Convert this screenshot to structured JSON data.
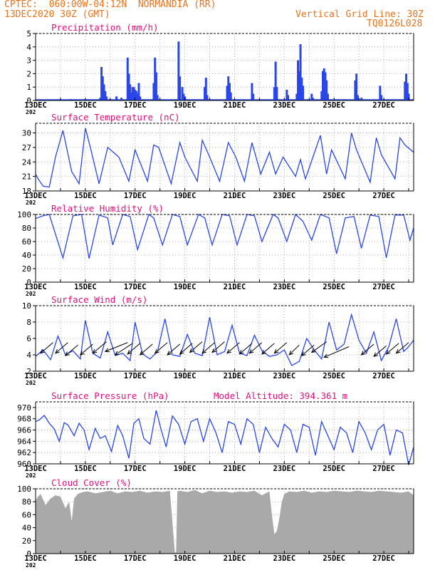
{
  "header": {
    "line1_left": "CPTEC:  060:00W-04:12N  NORMANDIA (RR)",
    "line2_left": "13DEC2020 30Z (GMT)",
    "line1_right": "Vertical Grid Line: 30Z",
    "line2_right": "TQ0126L028"
  },
  "colors": {
    "header": "#e8741c",
    "panel_title": "#e0107a",
    "series": "#2a46e8",
    "wind_arrow": "#000000",
    "cloud_fill": "#a9a9a9",
    "grid": "#9a9a9a"
  },
  "x_tick_labels": [
    "13DEC",
    "15DEC",
    "17DEC",
    "19DEC",
    "21DEC",
    "23DEC",
    "25DEC",
    "27DEC"
  ],
  "x_tick_days": [
    0,
    2,
    4,
    6,
    8,
    10,
    12,
    14
  ],
  "x_range_days": [
    0,
    15.2
  ],
  "x_cut_label": "202",
  "chart_data": [
    {
      "type": "bar",
      "title": "Precipitation (mm/h)",
      "ylim": [
        0,
        5
      ],
      "yticks": [
        0,
        1,
        2,
        3,
        4,
        5
      ],
      "grid": true,
      "bars": [
        {
          "x": 1.4,
          "v": 0.1
        },
        {
          "x": 2.6,
          "v": 0.2
        },
        {
          "x": 2.65,
          "v": 2.5
        },
        {
          "x": 2.7,
          "v": 1.8
        },
        {
          "x": 2.75,
          "v": 1.2
        },
        {
          "x": 2.8,
          "v": 0.7
        },
        {
          "x": 2.85,
          "v": 0.3
        },
        {
          "x": 3.25,
          "v": 0.3
        },
        {
          "x": 3.45,
          "v": 0.2
        },
        {
          "x": 3.7,
          "v": 3.2
        },
        {
          "x": 3.75,
          "v": 2.0
        },
        {
          "x": 3.8,
          "v": 1.2
        },
        {
          "x": 3.85,
          "v": 0.6
        },
        {
          "x": 3.9,
          "v": 1.0
        },
        {
          "x": 3.95,
          "v": 1.0
        },
        {
          "x": 4.0,
          "v": 0.8
        },
        {
          "x": 4.05,
          "v": 0.7
        },
        {
          "x": 4.1,
          "v": 0.5
        },
        {
          "x": 4.15,
          "v": 1.3
        },
        {
          "x": 4.2,
          "v": 0.3
        },
        {
          "x": 4.75,
          "v": 1.3
        },
        {
          "x": 4.8,
          "v": 3.2
        },
        {
          "x": 4.85,
          "v": 2.1
        },
        {
          "x": 4.9,
          "v": 0.4
        },
        {
          "x": 5.75,
          "v": 4.4
        },
        {
          "x": 5.8,
          "v": 1.8
        },
        {
          "x": 5.9,
          "v": 1.0
        },
        {
          "x": 5.95,
          "v": 0.5
        },
        {
          "x": 6.0,
          "v": 0.3
        },
        {
          "x": 6.8,
          "v": 1.0
        },
        {
          "x": 6.85,
          "v": 1.7
        },
        {
          "x": 6.9,
          "v": 0.4
        },
        {
          "x": 7.7,
          "v": 1.1
        },
        {
          "x": 7.75,
          "v": 1.8
        },
        {
          "x": 7.8,
          "v": 1.3
        },
        {
          "x": 7.85,
          "v": 0.6
        },
        {
          "x": 8.7,
          "v": 1.3
        },
        {
          "x": 8.75,
          "v": 0.5
        },
        {
          "x": 9.6,
          "v": 1.0
        },
        {
          "x": 9.65,
          "v": 2.9
        },
        {
          "x": 9.7,
          "v": 1.0
        },
        {
          "x": 10.1,
          "v": 0.8
        },
        {
          "x": 10.15,
          "v": 0.4
        },
        {
          "x": 10.5,
          "v": 0.5
        },
        {
          "x": 10.55,
          "v": 3.0
        },
        {
          "x": 10.6,
          "v": 2.2
        },
        {
          "x": 10.65,
          "v": 4.2
        },
        {
          "x": 10.7,
          "v": 1.7
        },
        {
          "x": 10.75,
          "v": 1.1
        },
        {
          "x": 11.1,
          "v": 0.5
        },
        {
          "x": 11.15,
          "v": 0.2
        },
        {
          "x": 11.5,
          "v": 0.7
        },
        {
          "x": 11.55,
          "v": 2.2
        },
        {
          "x": 11.6,
          "v": 2.4
        },
        {
          "x": 11.65,
          "v": 2.1
        },
        {
          "x": 11.7,
          "v": 1.5
        },
        {
          "x": 11.75,
          "v": 0.5
        },
        {
          "x": 12.85,
          "v": 1.5
        },
        {
          "x": 12.9,
          "v": 2.0
        },
        {
          "x": 12.95,
          "v": 0.4
        },
        {
          "x": 13.1,
          "v": 0.2
        },
        {
          "x": 13.85,
          "v": 1.1
        },
        {
          "x": 13.9,
          "v": 0.4
        },
        {
          "x": 14.85,
          "v": 1.4
        },
        {
          "x": 14.9,
          "v": 2.0
        },
        {
          "x": 14.95,
          "v": 1.3
        },
        {
          "x": 15.0,
          "v": 0.5
        }
      ]
    },
    {
      "type": "line",
      "title": "Surface Temperature (nC)",
      "ylim": [
        18,
        32
      ],
      "yticks": [
        18,
        21,
        24,
        27,
        30
      ],
      "grid": true,
      "x": [
        0,
        0.1,
        0.3,
        0.55,
        0.8,
        1.1,
        1.45,
        1.75,
        2.0,
        2.2,
        2.55,
        2.9,
        3.35,
        3.75,
        4.0,
        4.5,
        4.75,
        4.95,
        5.45,
        5.8,
        6.0,
        6.5,
        6.7,
        7.0,
        7.4,
        7.75,
        8.05,
        8.4,
        8.7,
        9.05,
        9.4,
        9.65,
        9.95,
        10.45,
        10.65,
        10.85,
        11.45,
        11.7,
        11.9,
        12.45,
        12.7,
        12.9,
        13.45,
        13.7,
        13.9,
        14.45,
        14.65,
        14.85,
        15.2
      ],
      "y": [
        21.5,
        20.5,
        19.0,
        18.8,
        25.0,
        30.5,
        22.0,
        19.5,
        31.0,
        27.0,
        19.5,
        27.0,
        25.0,
        20.0,
        26.5,
        20.0,
        27.5,
        27.0,
        19.5,
        28.0,
        25.0,
        20.0,
        28.5,
        25.0,
        20.0,
        28.0,
        25.0,
        20.0,
        28.0,
        21.5,
        26.0,
        21.5,
        25.0,
        21.0,
        24.5,
        20.5,
        29.5,
        21.5,
        26.5,
        20.5,
        30.0,
        26.5,
        19.8,
        29.0,
        25.5,
        20.5,
        29.0,
        27.5,
        26.0
      ]
    },
    {
      "type": "line",
      "title": "Relative Humidity (%)",
      "ylim": [
        0,
        100
      ],
      "yticks": [
        0,
        20,
        40,
        60,
        80,
        100
      ],
      "grid": true,
      "x": [
        0,
        0.3,
        0.55,
        0.85,
        1.1,
        1.5,
        1.85,
        2.15,
        2.55,
        2.9,
        3.1,
        3.5,
        3.8,
        4.1,
        4.55,
        4.75,
        5.1,
        5.5,
        5.8,
        6.1,
        6.55,
        6.8,
        7.1,
        7.5,
        7.8,
        8.1,
        8.5,
        8.8,
        9.1,
        9.55,
        9.75,
        10.1,
        10.45,
        10.75,
        11.1,
        11.45,
        11.8,
        12.1,
        12.45,
        12.8,
        13.1,
        13.45,
        13.8,
        14.1,
        14.45,
        14.8,
        15.05,
        15.2
      ],
      "y": [
        94,
        98,
        100,
        65,
        36,
        98,
        100,
        35,
        99,
        95,
        55,
        100,
        97,
        48,
        100,
        95,
        55,
        100,
        97,
        55,
        100,
        95,
        55,
        100,
        98,
        55,
        100,
        98,
        60,
        100,
        95,
        60,
        100,
        90,
        62,
        100,
        95,
        42,
        95,
        97,
        50,
        99,
        97,
        36,
        99,
        99,
        62,
        80
      ]
    },
    {
      "type": "line",
      "title": "Surface Wind (m/s)",
      "ylim": [
        2,
        10
      ],
      "yticks": [
        2,
        4,
        6,
        8,
        10
      ],
      "grid": true,
      "x": [
        0,
        0.3,
        0.6,
        0.9,
        1.2,
        1.5,
        1.8,
        2.0,
        2.3,
        2.6,
        2.9,
        3.2,
        3.5,
        3.8,
        4.0,
        4.3,
        4.6,
        4.9,
        5.2,
        5.5,
        5.8,
        6.1,
        6.4,
        6.7,
        7.0,
        7.3,
        7.6,
        7.9,
        8.2,
        8.5,
        8.8,
        9.1,
        9.4,
        9.7,
        10.0,
        10.3,
        10.6,
        10.9,
        11.2,
        11.5,
        11.8,
        12.1,
        12.4,
        12.7,
        13.0,
        13.3,
        13.6,
        13.9,
        14.2,
        14.5,
        14.8,
        15.0,
        15.2
      ],
      "y": [
        3.8,
        4.6,
        3.4,
        6.3,
        4.0,
        4.5,
        3.5,
        8.2,
        4.2,
        3.6,
        6.8,
        3.9,
        4.2,
        3.3,
        8.0,
        4.1,
        3.5,
        4.4,
        8.4,
        4.0,
        3.8,
        6.5,
        4.2,
        3.9,
        8.6,
        4.0,
        4.4,
        7.6,
        4.2,
        3.9,
        6.4,
        4.5,
        3.8,
        4.0,
        4.6,
        2.7,
        3.2,
        6.0,
        4.6,
        3.5,
        8.0,
        4.6,
        5.3,
        8.9,
        5.8,
        4.2,
        6.8,
        3.3,
        5.0,
        8.4,
        4.4,
        5.0,
        5.8
      ],
      "arrows": [
        {
          "x": 0.2,
          "y": 4.2,
          "dx": 0.5,
          "dy": 1.3
        },
        {
          "x": 0.8,
          "y": 4.2,
          "dx": 0.5,
          "dy": 1.3
        },
        {
          "x": 1.2,
          "y": 3.9,
          "dx": 0.5,
          "dy": 1.3
        },
        {
          "x": 1.8,
          "y": 4.0,
          "dx": 0.5,
          "dy": 1.3
        },
        {
          "x": 2.3,
          "y": 4.2,
          "dx": 0.55,
          "dy": 1.4
        },
        {
          "x": 2.8,
          "y": 4.4,
          "dx": 0.9,
          "dy": 1.1
        },
        {
          "x": 3.2,
          "y": 4.0,
          "dx": 0.7,
          "dy": 1.4
        },
        {
          "x": 3.7,
          "y": 4.1,
          "dx": 0.5,
          "dy": 1.3
        },
        {
          "x": 4.2,
          "y": 4.0,
          "dx": 0.5,
          "dy": 1.3
        },
        {
          "x": 4.8,
          "y": 4.2,
          "dx": 0.5,
          "dy": 1.3
        },
        {
          "x": 5.3,
          "y": 4.0,
          "dx": 0.5,
          "dy": 1.3
        },
        {
          "x": 5.8,
          "y": 4.1,
          "dx": 0.5,
          "dy": 1.3
        },
        {
          "x": 6.2,
          "y": 4.3,
          "dx": 0.5,
          "dy": 1.3
        },
        {
          "x": 6.7,
          "y": 4.2,
          "dx": 0.5,
          "dy": 1.3
        },
        {
          "x": 7.1,
          "y": 4.3,
          "dx": 0.5,
          "dy": 1.3
        },
        {
          "x": 7.7,
          "y": 4.2,
          "dx": 0.5,
          "dy": 1.3
        },
        {
          "x": 8.2,
          "y": 4.1,
          "dx": 0.5,
          "dy": 1.3
        },
        {
          "x": 8.6,
          "y": 4.2,
          "dx": 0.5,
          "dy": 1.3
        },
        {
          "x": 9.1,
          "y": 4.1,
          "dx": 0.5,
          "dy": 1.3
        },
        {
          "x": 9.6,
          "y": 4.2,
          "dx": 0.5,
          "dy": 1.3
        },
        {
          "x": 10.2,
          "y": 4.0,
          "dx": 0.4,
          "dy": 1.2
        },
        {
          "x": 10.7,
          "y": 3.9,
          "dx": 0.5,
          "dy": 1.3
        },
        {
          "x": 11.1,
          "y": 4.3,
          "dx": 0.6,
          "dy": 1.3
        },
        {
          "x": 11.6,
          "y": 3.7,
          "dx": 1.0,
          "dy": 1.3
        },
        {
          "x": 13.1,
          "y": 4.0,
          "dx": 0.5,
          "dy": 1.3
        },
        {
          "x": 13.6,
          "y": 3.8,
          "dx": 0.5,
          "dy": 1.3
        },
        {
          "x": 14.1,
          "y": 4.1,
          "dx": 0.5,
          "dy": 1.3
        },
        {
          "x": 14.5,
          "y": 4.2,
          "dx": 0.5,
          "dy": 1.3
        }
      ]
    },
    {
      "type": "line",
      "title": "Surface Pressure (hPa)",
      "annotation": "Model Altitude: 394.361  m",
      "ylim": [
        960,
        971
      ],
      "yticks": [
        960,
        962,
        964,
        966,
        968,
        970
      ],
      "grid": true,
      "x": [
        0,
        0.15,
        0.35,
        0.55,
        0.75,
        0.95,
        1.15,
        1.3,
        1.55,
        1.75,
        1.95,
        2.15,
        2.4,
        2.6,
        2.8,
        3.05,
        3.3,
        3.5,
        3.75,
        3.95,
        4.15,
        4.35,
        4.6,
        4.85,
        5.05,
        5.25,
        5.5,
        5.75,
        6.0,
        6.25,
        6.5,
        6.75,
        7.0,
        7.25,
        7.5,
        7.75,
        8.0,
        8.25,
        8.5,
        8.75,
        9.0,
        9.25,
        9.5,
        9.75,
        10.0,
        10.25,
        10.5,
        10.75,
        11.0,
        11.25,
        11.5,
        11.75,
        12.0,
        12.25,
        12.5,
        12.75,
        13.0,
        13.25,
        13.5,
        13.75,
        14.0,
        14.25,
        14.5,
        14.75,
        15.0,
        15.2
      ],
      "y": [
        967.5,
        967.8,
        968.6,
        967.2,
        966.2,
        964.0,
        967.3,
        966.9,
        965.0,
        967.2,
        966.0,
        962.5,
        966.3,
        964.5,
        965.0,
        962.2,
        966.8,
        965.0,
        961.0,
        967.2,
        968.0,
        964.5,
        963.5,
        969.5,
        966.0,
        963.0,
        968.5,
        967.0,
        963.5,
        967.5,
        968.0,
        964.0,
        968.0,
        965.5,
        962.0,
        967.5,
        967.0,
        963.5,
        968.0,
        967.0,
        962.0,
        966.5,
        964.5,
        963.0,
        967.0,
        966.0,
        962.0,
        967.0,
        966.5,
        961.5,
        967.5,
        965.0,
        962.5,
        966.5,
        965.5,
        962.0,
        967.5,
        965.5,
        962.5,
        966.0,
        967.0,
        961.5,
        966.0,
        965.5,
        959.8,
        963.0
      ]
    },
    {
      "type": "area",
      "title": "Cloud Cover (%)",
      "ylim": [
        0,
        100
      ],
      "yticks": [
        0,
        20,
        40,
        60,
        80,
        100
      ],
      "grid": true,
      "x": [
        0,
        0.1,
        0.2,
        0.4,
        0.6,
        0.8,
        1.0,
        1.2,
        1.35,
        1.45,
        1.55,
        1.7,
        1.9,
        2.1,
        2.4,
        2.7,
        3.0,
        3.3,
        3.6,
        3.9,
        4.2,
        4.5,
        4.8,
        5.1,
        5.4,
        5.6,
        5.65,
        5.7,
        5.8,
        6.1,
        6.4,
        6.7,
        7.0,
        7.3,
        7.6,
        7.9,
        8.2,
        8.5,
        8.8,
        9.1,
        9.4,
        9.5,
        9.6,
        9.7,
        9.8,
        9.9,
        10.0,
        10.2,
        10.5,
        10.8,
        11.1,
        11.4,
        11.7,
        12.0,
        12.3,
        12.6,
        12.9,
        13.2,
        13.5,
        13.8,
        14.1,
        14.4,
        14.7,
        15.0,
        15.2
      ],
      "y": [
        82,
        88,
        92,
        75,
        85,
        90,
        88,
        70,
        80,
        50,
        85,
        92,
        95,
        96,
        93,
        95,
        97,
        93,
        96,
        95,
        97,
        94,
        96,
        95,
        97,
        2,
        2,
        96,
        97,
        95,
        98,
        93,
        97,
        95,
        96,
        94,
        96,
        95,
        97,
        90,
        96,
        60,
        30,
        35,
        55,
        80,
        92,
        96,
        95,
        97,
        94,
        96,
        95,
        97,
        96,
        95,
        97,
        96,
        95,
        97,
        96,
        95,
        94,
        96,
        90
      ]
    }
  ]
}
